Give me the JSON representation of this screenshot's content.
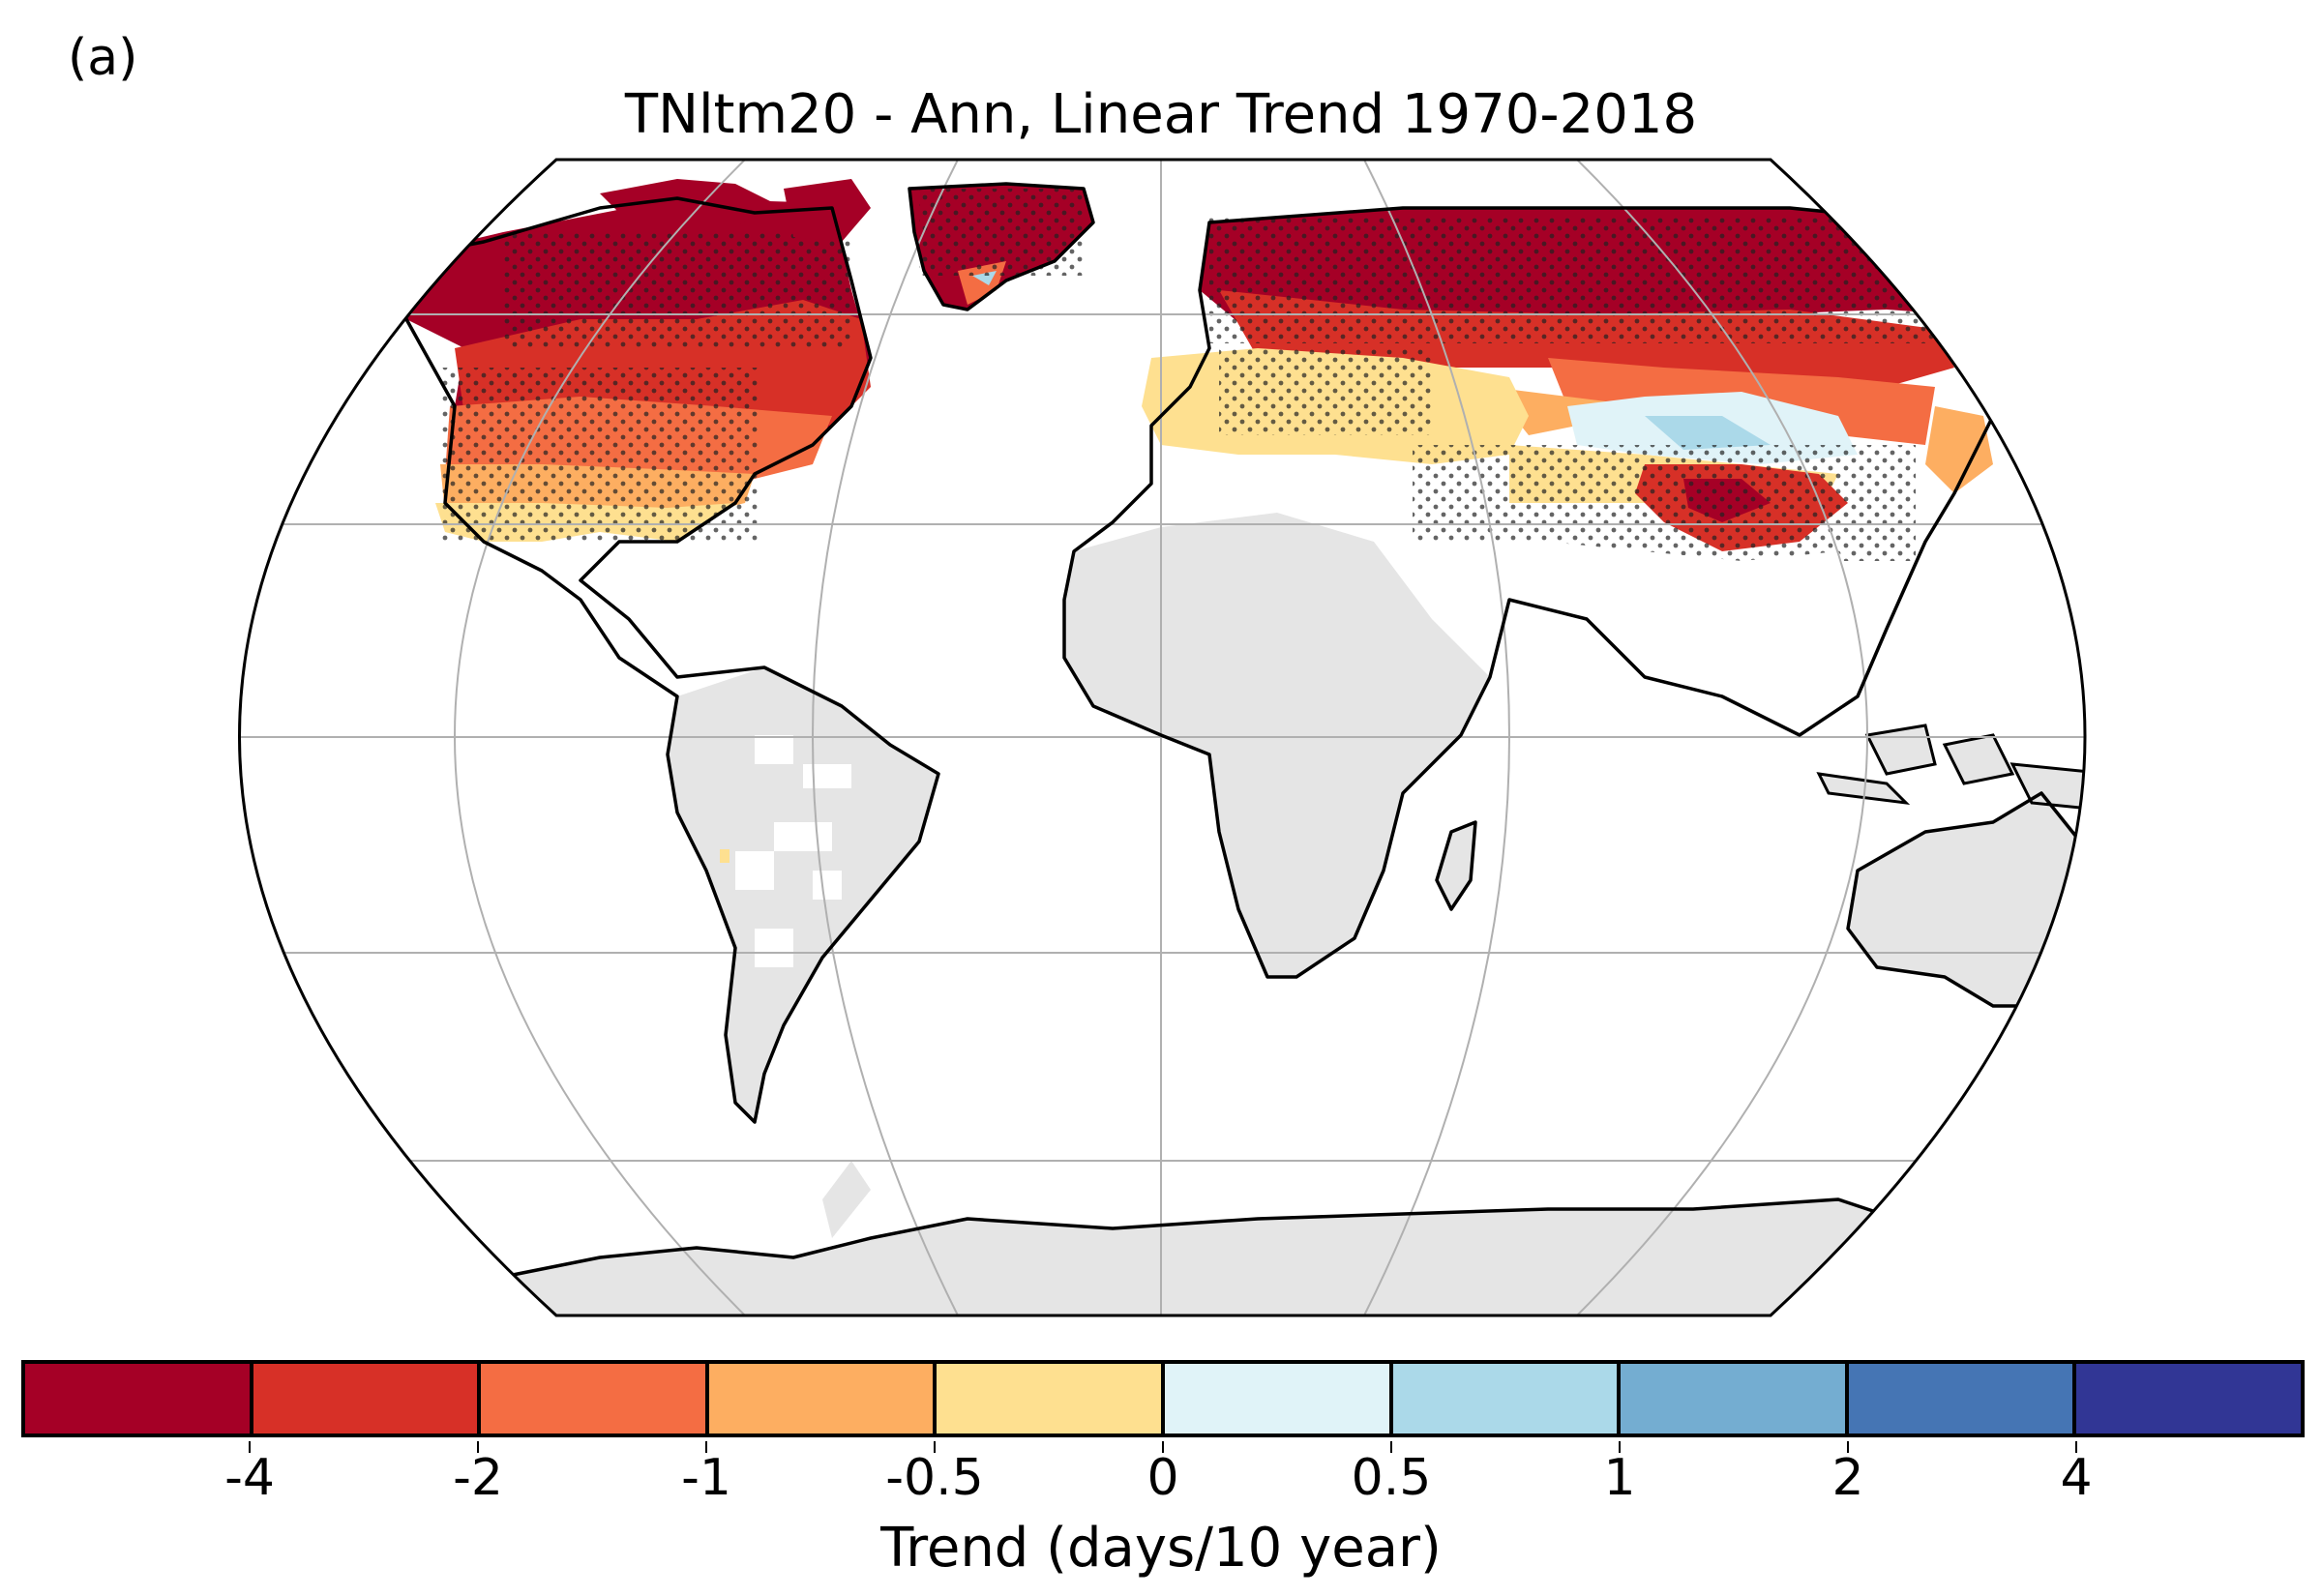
{
  "panel_label": "(a)",
  "title": "TNltm20 - Ann, Linear Trend 1970-2018",
  "colorbar": {
    "label": "Trend (days/10 year)",
    "tick_labels": [
      "-4",
      "-2",
      "-1",
      "-0.5",
      "0",
      "0.5",
      "1",
      "2",
      "4"
    ],
    "bins": [
      {
        "range": "< -4",
        "color": "#a50026"
      },
      {
        "range": "-4 to -2",
        "color": "#d73027"
      },
      {
        "range": "-2 to -1",
        "color": "#f46d43"
      },
      {
        "range": "-1 to -0.5",
        "color": "#fdae61"
      },
      {
        "range": "-0.5 to 0",
        "color": "#fee090"
      },
      {
        "range": "0 to 0.5",
        "color": "#e0f3f8"
      },
      {
        "range": "0.5 to 1",
        "color": "#abd9e9"
      },
      {
        "range": "1 to 2",
        "color": "#74add1"
      },
      {
        "range": "2 to 4",
        "color": "#4575b4"
      },
      {
        "range": "> 4",
        "color": "#313695"
      }
    ]
  },
  "map": {
    "projection": "Robinson",
    "no_data_color": "#e5e5e5",
    "stippling": "dots mark significant trends",
    "regions": [
      {
        "name": "Arctic Canada / Alaska",
        "trend_bin": "< -4"
      },
      {
        "name": "Greenland",
        "trend_bin": "< -4"
      },
      {
        "name": "Northern Eurasia",
        "trend_bin": "< -4"
      },
      {
        "name": "Canada / north USA",
        "trend_bin": "-4 to -2"
      },
      {
        "name": "Central USA",
        "trend_bin": "-1 to -0.5"
      },
      {
        "name": "Southern USA",
        "trend_bin": "-0.5 to 0"
      },
      {
        "name": "Europe / Mediterranean",
        "trend_bin": "-0.5 to 0"
      },
      {
        "name": "Central Asia",
        "trend_bin": "0 to 0.5"
      },
      {
        "name": "Tibetan Plateau",
        "trend_bin": "< -4"
      },
      {
        "name": "Africa",
        "trend_bin": "no data"
      },
      {
        "name": "South America",
        "trend_bin": "no data"
      },
      {
        "name": "Australia",
        "trend_bin": "no data"
      },
      {
        "name": "Antarctica",
        "trend_bin": "no data"
      }
    ]
  }
}
